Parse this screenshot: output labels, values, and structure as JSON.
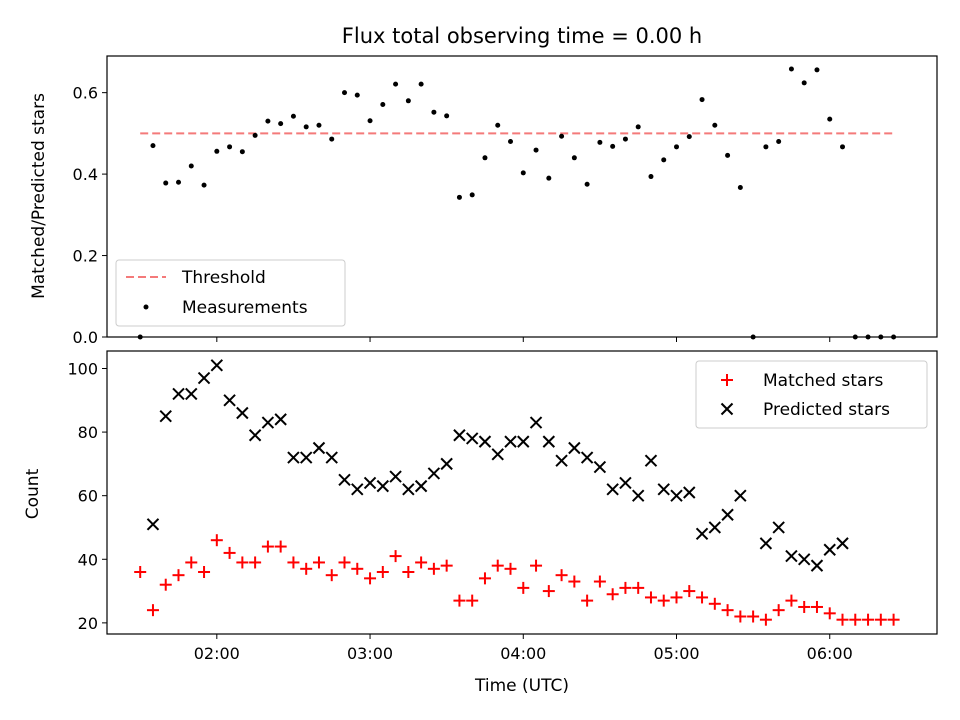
{
  "chart_data": [
    {
      "type": "scatter",
      "title": "Flux total observing time = 0.00 h",
      "xlabel": "",
      "ylabel": "Matched/Predicted stars",
      "xlim_minutes": [
        77,
        402
      ],
      "ylim": [
        0,
        0.69
      ],
      "yticks": [
        0.0,
        0.2,
        0.4,
        0.6
      ],
      "yticklabels": [
        "0.0",
        "0.2",
        "0.4",
        "0.6"
      ],
      "grid": false,
      "legend_position": "lower-left",
      "threshold": {
        "name": "Threshold",
        "y": 0.5,
        "x_start": "01:30",
        "x_end": "06:25",
        "color": "#f47a7a"
      },
      "series": [
        {
          "name": "Measurements",
          "color": "#000000",
          "points": [
            [
              "01:30",
              0.0
            ],
            [
              "01:35",
              0.47
            ],
            [
              "01:40",
              0.378
            ],
            [
              "01:45",
              0.38
            ],
            [
              "01:50",
              0.42
            ],
            [
              "01:55",
              0.373
            ],
            [
              "02:00",
              0.456
            ],
            [
              "02:05",
              0.467
            ],
            [
              "02:10",
              0.455
            ],
            [
              "02:15",
              0.495
            ],
            [
              "02:20",
              0.53
            ],
            [
              "02:25",
              0.524
            ],
            [
              "02:30",
              0.542
            ],
            [
              "02:35",
              0.516
            ],
            [
              "02:40",
              0.52
            ],
            [
              "02:45",
              0.486
            ],
            [
              "02:50",
              0.6
            ],
            [
              "02:55",
              0.594
            ],
            [
              "03:00",
              0.531
            ],
            [
              "03:05",
              0.571
            ],
            [
              "03:10",
              0.621
            ],
            [
              "03:15",
              0.58
            ],
            [
              "03:20",
              0.621
            ],
            [
              "03:25",
              0.552
            ],
            [
              "03:30",
              0.543
            ],
            [
              "03:35",
              0.343
            ],
            [
              "03:40",
              0.349
            ],
            [
              "03:45",
              0.44
            ],
            [
              "03:50",
              0.52
            ],
            [
              "03:55",
              0.48
            ],
            [
              "04:00",
              0.403
            ],
            [
              "04:05",
              0.459
            ],
            [
              "04:10",
              0.39
            ],
            [
              "04:15",
              0.493
            ],
            [
              "04:20",
              0.44
            ],
            [
              "04:25",
              0.375
            ],
            [
              "04:30",
              0.478
            ],
            [
              "04:35",
              0.468
            ],
            [
              "04:40",
              0.486
            ],
            [
              "04:45",
              0.516
            ],
            [
              "04:50",
              0.394
            ],
            [
              "04:55",
              0.435
            ],
            [
              "05:00",
              0.467
            ],
            [
              "05:05",
              0.492
            ],
            [
              "05:10",
              0.583
            ],
            [
              "05:15",
              0.52
            ],
            [
              "05:20",
              0.446
            ],
            [
              "05:25",
              0.367
            ],
            [
              "05:30",
              0.0
            ],
            [
              "05:35",
              0.467
            ],
            [
              "05:40",
              0.48
            ],
            [
              "05:45",
              0.658
            ],
            [
              "05:50",
              0.624
            ],
            [
              "05:55",
              0.656
            ],
            [
              "06:00",
              0.535
            ],
            [
              "06:05",
              0.467
            ],
            [
              "06:10",
              0.0
            ],
            [
              "06:15",
              0.0
            ],
            [
              "06:20",
              0.0
            ],
            [
              "06:25",
              0.0
            ]
          ]
        }
      ]
    },
    {
      "type": "scatter",
      "title": "",
      "xlabel": "Time (UTC)",
      "ylabel": "Count",
      "xlim_minutes": [
        77,
        402
      ],
      "ylim": [
        16.5,
        105.5
      ],
      "yticks": [
        20,
        40,
        60,
        80,
        100
      ],
      "yticklabels": [
        "20",
        "40",
        "60",
        "80",
        "100"
      ],
      "xticks": [
        "02:00",
        "03:00",
        "04:00",
        "05:00",
        "06:00"
      ],
      "grid": false,
      "legend_position": "upper-right",
      "series": [
        {
          "name": "Matched stars",
          "marker": "plus",
          "color": "#ff0000",
          "points": [
            [
              "01:30",
              36
            ],
            [
              "01:35",
              24
            ],
            [
              "01:40",
              32
            ],
            [
              "01:45",
              35
            ],
            [
              "01:50",
              39
            ],
            [
              "01:55",
              36
            ],
            [
              "02:00",
              46
            ],
            [
              "02:05",
              42
            ],
            [
              "02:10",
              39
            ],
            [
              "02:15",
              39
            ],
            [
              "02:20",
              44
            ],
            [
              "02:25",
              44
            ],
            [
              "02:30",
              39
            ],
            [
              "02:35",
              37
            ],
            [
              "02:40",
              39
            ],
            [
              "02:45",
              35
            ],
            [
              "02:50",
              39
            ],
            [
              "02:55",
              37
            ],
            [
              "03:00",
              34
            ],
            [
              "03:05",
              36
            ],
            [
              "03:10",
              41
            ],
            [
              "03:15",
              36
            ],
            [
              "03:20",
              39
            ],
            [
              "03:25",
              37
            ],
            [
              "03:30",
              38
            ],
            [
              "03:35",
              27
            ],
            [
              "03:40",
              27
            ],
            [
              "03:45",
              34
            ],
            [
              "03:50",
              38
            ],
            [
              "03:55",
              37
            ],
            [
              "04:00",
              31
            ],
            [
              "04:05",
              38
            ],
            [
              "04:10",
              30
            ],
            [
              "04:15",
              35
            ],
            [
              "04:20",
              33
            ],
            [
              "04:25",
              27
            ],
            [
              "04:30",
              33
            ],
            [
              "04:35",
              29
            ],
            [
              "04:40",
              31
            ],
            [
              "04:45",
              31
            ],
            [
              "04:50",
              28
            ],
            [
              "04:55",
              27
            ],
            [
              "05:00",
              28
            ],
            [
              "05:05",
              30
            ],
            [
              "05:10",
              28
            ],
            [
              "05:15",
              26
            ],
            [
              "05:20",
              24
            ],
            [
              "05:25",
              22
            ],
            [
              "05:30",
              22
            ],
            [
              "05:35",
              21
            ],
            [
              "05:40",
              24
            ],
            [
              "05:45",
              27
            ],
            [
              "05:50",
              25
            ],
            [
              "05:55",
              25
            ],
            [
              "06:00",
              23
            ],
            [
              "06:05",
              21
            ],
            [
              "06:10",
              21
            ],
            [
              "06:15",
              21
            ],
            [
              "06:20",
              21
            ],
            [
              "06:25",
              21
            ]
          ]
        },
        {
          "name": "Predicted stars",
          "marker": "x",
          "color": "#000000",
          "points": [
            [
              "01:35",
              51
            ],
            [
              "01:40",
              85
            ],
            [
              "01:45",
              92
            ],
            [
              "01:50",
              92
            ],
            [
              "01:55",
              97
            ],
            [
              "02:00",
              101
            ],
            [
              "02:05",
              90
            ],
            [
              "02:10",
              86
            ],
            [
              "02:15",
              79
            ],
            [
              "02:20",
              83
            ],
            [
              "02:25",
              84
            ],
            [
              "02:30",
              72
            ],
            [
              "02:35",
              72
            ],
            [
              "02:40",
              75
            ],
            [
              "02:45",
              72
            ],
            [
              "02:50",
              65
            ],
            [
              "02:55",
              62
            ],
            [
              "03:00",
              64
            ],
            [
              "03:05",
              63
            ],
            [
              "03:10",
              66
            ],
            [
              "03:15",
              62
            ],
            [
              "03:20",
              63
            ],
            [
              "03:25",
              67
            ],
            [
              "03:30",
              70
            ],
            [
              "03:35",
              79
            ],
            [
              "03:40",
              78
            ],
            [
              "03:45",
              77
            ],
            [
              "03:50",
              73
            ],
            [
              "03:55",
              77
            ],
            [
              "04:00",
              77
            ],
            [
              "04:05",
              83
            ],
            [
              "04:10",
              77
            ],
            [
              "04:15",
              71
            ],
            [
              "04:20",
              75
            ],
            [
              "04:25",
              72
            ],
            [
              "04:30",
              69
            ],
            [
              "04:35",
              62
            ],
            [
              "04:40",
              64
            ],
            [
              "04:45",
              60
            ],
            [
              "04:50",
              71
            ],
            [
              "04:55",
              62
            ],
            [
              "05:00",
              60
            ],
            [
              "05:05",
              61
            ],
            [
              "05:10",
              48
            ],
            [
              "05:15",
              50
            ],
            [
              "05:20",
              54
            ],
            [
              "05:25",
              60
            ],
            [
              "05:35",
              45
            ],
            [
              "05:40",
              50
            ],
            [
              "05:45",
              41
            ],
            [
              "05:50",
              40
            ],
            [
              "05:55",
              38
            ],
            [
              "06:00",
              43
            ],
            [
              "06:05",
              45
            ]
          ]
        }
      ]
    }
  ]
}
